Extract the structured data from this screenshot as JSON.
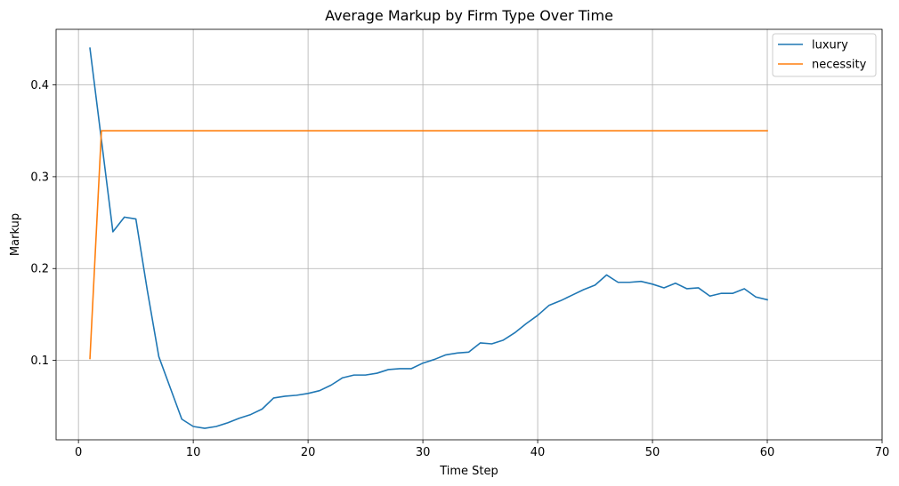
{
  "chart_data": {
    "type": "line",
    "title": "Average Markup by Firm Type Over Time",
    "xlabel": "Time Step",
    "ylabel": "Markup",
    "xlim": [
      -1.95,
      70
    ],
    "ylim": [
      0.0135,
      0.4605
    ],
    "xticks": [
      0,
      10,
      20,
      30,
      40,
      50,
      60,
      70
    ],
    "yticks": [
      0.1,
      0.2,
      0.3,
      0.4
    ],
    "grid": true,
    "legend_position": "top-right",
    "x": [
      1,
      2,
      3,
      4,
      5,
      6,
      7,
      8,
      9,
      10,
      11,
      12,
      13,
      14,
      15,
      16,
      17,
      18,
      19,
      20,
      21,
      22,
      23,
      24,
      25,
      26,
      27,
      28,
      29,
      30,
      31,
      32,
      33,
      34,
      35,
      36,
      37,
      38,
      39,
      40,
      41,
      42,
      43,
      44,
      45,
      46,
      47,
      48,
      49,
      50,
      51,
      52,
      53,
      54,
      55,
      56,
      57,
      58,
      59,
      60
    ],
    "series": [
      {
        "name": "luxury",
        "color": "#1f77b4",
        "values": [
          0.44,
          0.34,
          0.24,
          0.256,
          0.254,
          0.176,
          0.104,
          0.07,
          0.036,
          0.028,
          0.026,
          0.028,
          0.032,
          0.037,
          0.041,
          0.047,
          0.059,
          0.061,
          0.062,
          0.064,
          0.067,
          0.073,
          0.081,
          0.084,
          0.084,
          0.086,
          0.09,
          0.091,
          0.091,
          0.097,
          0.101,
          0.106,
          0.108,
          0.109,
          0.119,
          0.118,
          0.122,
          0.13,
          0.14,
          0.149,
          0.16,
          0.165,
          0.171,
          0.177,
          0.182,
          0.193,
          0.185,
          0.185,
          0.186,
          0.183,
          0.179,
          0.184,
          0.178,
          0.179,
          0.17,
          0.173,
          0.173,
          0.178,
          0.169,
          0.166
        ]
      },
      {
        "name": "necessity",
        "color": "#ff7f0e",
        "values": [
          0.102,
          0.35,
          0.35,
          0.35,
          0.35,
          0.35,
          0.35,
          0.35,
          0.35,
          0.35,
          0.35,
          0.35,
          0.35,
          0.35,
          0.35,
          0.35,
          0.35,
          0.35,
          0.35,
          0.35,
          0.35,
          0.35,
          0.35,
          0.35,
          0.35,
          0.35,
          0.35,
          0.35,
          0.35,
          0.35,
          0.35,
          0.35,
          0.35,
          0.35,
          0.35,
          0.35,
          0.35,
          0.35,
          0.35,
          0.35,
          0.35,
          0.35,
          0.35,
          0.35,
          0.35,
          0.35,
          0.35,
          0.35,
          0.35,
          0.35,
          0.35,
          0.35,
          0.35,
          0.35,
          0.35,
          0.35,
          0.35,
          0.35,
          0.35,
          0.35
        ]
      }
    ]
  }
}
